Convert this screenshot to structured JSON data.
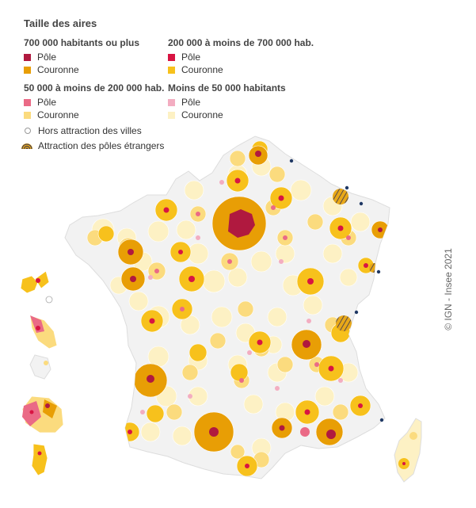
{
  "legend": {
    "title": "Taille des aires",
    "groups": [
      {
        "title": "700 000 habitants ou plus",
        "pole_label": "Pôle",
        "couronne_label": "Couronne",
        "pole_color": "#b0193f",
        "couronne_color": "#e89e05"
      },
      {
        "title": "200 000 à moins de 700 000 hab.",
        "pole_label": "Pôle",
        "couronne_label": "Couronne",
        "pole_color": "#d81442",
        "couronne_color": "#f7c11c"
      },
      {
        "title": "50 000 à moins de 200 000 hab.",
        "pole_label": "Pôle",
        "couronne_label": "Couronne",
        "pole_color": "#ea6a86",
        "couronne_color": "#fbdb7e"
      },
      {
        "title": "Moins de 50 000 habitants",
        "pole_label": "Pôle",
        "couronne_label": "Couronne",
        "pole_color": "#f3adc1",
        "couronne_color": "#fdf1c4"
      }
    ],
    "hors_attraction": "Hors attraction des villes",
    "poles_etrangers": "Attraction des pôles étrangers"
  },
  "credit": "© IGN - Insee 2021",
  "colors": {
    "hors": "#f2f2f2",
    "boundary": "#ffffff",
    "hatch": "#444466",
    "foreign_pole": "#1f3864"
  }
}
